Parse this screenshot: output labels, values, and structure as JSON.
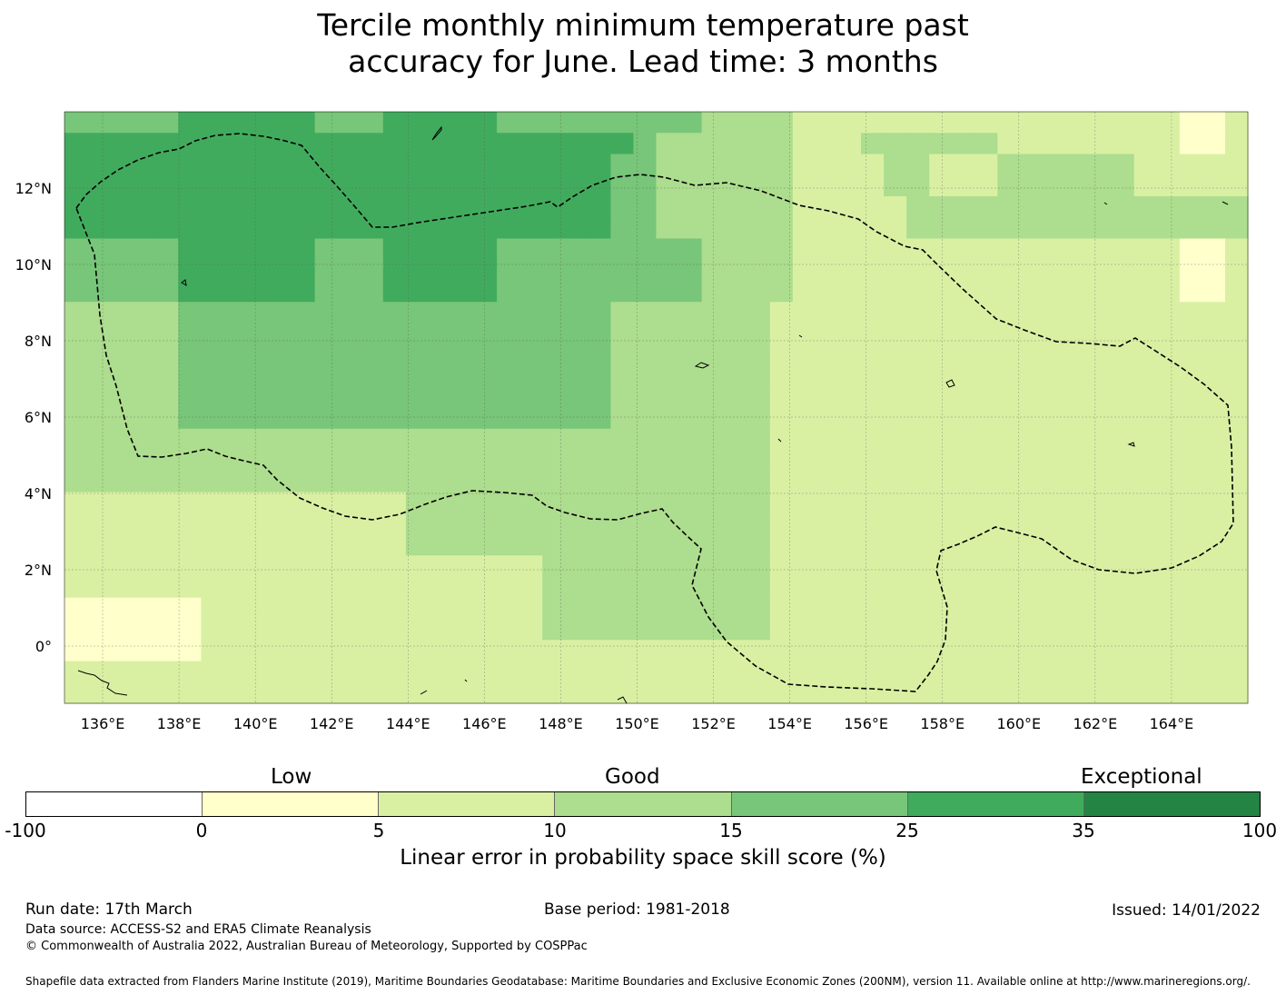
{
  "title_line1": "Tercile monthly minimum temperature past",
  "title_line2": "accuracy for June. Lead time: 3 months",
  "map": {
    "lon_min": 135,
    "lon_max": 166,
    "lat_min": -1.5,
    "lat_max": 14,
    "x_ticks": [
      136,
      138,
      140,
      142,
      144,
      146,
      148,
      150,
      152,
      154,
      156,
      158,
      160,
      162,
      164
    ],
    "x_tick_labels": [
      "136°E",
      "138°E",
      "140°E",
      "142°E",
      "144°E",
      "146°E",
      "148°E",
      "150°E",
      "152°E",
      "154°E",
      "156°E",
      "158°E",
      "160°E",
      "162°E",
      "164°E"
    ],
    "y_ticks": [
      12,
      10,
      8,
      6,
      4,
      2,
      0
    ],
    "y_tick_labels": [
      "12°N",
      "10°N",
      "8°N",
      "6°N",
      "4°N",
      "2°N",
      "0°"
    ],
    "grid_rows": [
      "4444455555544455555444444444333322222222222222222112",
      "5555555555555555555555555433333322233333322222222112",
      "5555555555555555555555554433333322223322233333322222",
      "5555555555555555555555554433333322223322233333322222",
      "5555555555555555555555554433333322222333333333333333",
      "5555555555555555555555554433333322222333333333333333",
      "4444455555544455555444444444333322222222222222222112",
      "4444455555544455555444444444333322222222222222222112",
      "4444455555544455555444444444333322222222222222222112",
      "3333344444444444444444443333333222222222222222222222",
      "3333344444444444444444443333333222222222222222222222",
      "3333344444444444444444443333333222222222222222222222",
      "3333344444444444444444443333333222222222222222222222",
      "3333344444444444444444443333333222222222222222222222",
      "3333344444444444444444443333333222222222222222222222",
      "3333333333333333333333333333333222222222222222222222",
      "3333333333333333333333333333333222222222222222222222",
      "3333333333333333333333333333333222222222222222222222",
      "2222222222222223333333333333333222222222222222222222",
      "2222222222222223333333333333333222222222222222222222",
      "2222222222222223333333333333333222222222222222222222",
      "2222222222222222222223333333333222222222222222222222",
      "2222222222222222222223333333333222222222222222222222",
      "1111112222222222222223333333333222222222222222222222",
      "1111112222222222222223333333333222222222222222222222",
      "1111112222222222222222222222222222222222222222222222",
      "2222222222222222222222222222222222222222222222222222",
      "2222222222222222222222222222222222222222222222222222"
    ],
    "scene_description_ignored": ""
  },
  "colorbar": {
    "categories": [
      "Low",
      "Good",
      "Exceptional"
    ],
    "bins": [
      {
        "from": "-100",
        "to": "0",
        "color": "#ffffff"
      },
      {
        "from": "0",
        "to": "5",
        "color": "#ffffcc"
      },
      {
        "from": "5",
        "to": "10",
        "color": "#d9f0a3"
      },
      {
        "from": "10",
        "to": "15",
        "color": "#addd8e"
      },
      {
        "from": "15",
        "to": "25",
        "color": "#78c679"
      },
      {
        "from": "25",
        "to": "35",
        "color": "#41ab5d"
      },
      {
        "from": "35",
        "to": "100",
        "color": "#238443"
      }
    ],
    "tick_labels": [
      "-100",
      "0",
      "5",
      "10",
      "15",
      "25",
      "35",
      "100"
    ],
    "label": "Linear error in probability space skill score (%)"
  },
  "footer": {
    "run_date": "Run date: 17th March",
    "base_period": "Base period: 1981-2018",
    "issued": "Issued: 14/01/2022",
    "data_source": "Data source: ACCESS-S2 and ERA5 Climate Reanalysis",
    "copyright": "© Commonwealth of Australia 2022, Australian Bureau of Meteorology, Supported by COSPPac",
    "shapefile": "Shapefile data extracted from Flanders Marine Institute (2019), Maritime Boundaries Geodatabase: Maritime Boundaries and Exclusive Economic Zones (200NM), version 11. Available online at http://www.marineregions.org/."
  }
}
